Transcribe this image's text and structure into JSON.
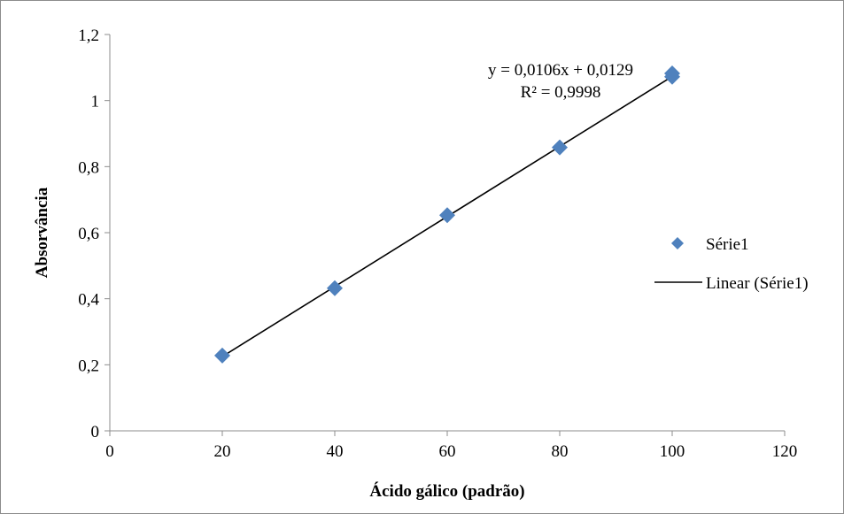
{
  "chart_data": {
    "type": "scatter",
    "xlabel": "Ácido gálico (padrão)",
    "ylabel": "Absorvância",
    "xlim": [
      0,
      120
    ],
    "ylim": [
      0,
      1.2
    ],
    "x_ticks": [
      0,
      20,
      40,
      60,
      80,
      100,
      120
    ],
    "y_ticks": [
      0,
      0.2,
      0.4,
      0.6,
      0.8,
      1,
      1.2
    ],
    "x_tick_labels": [
      "0",
      "20",
      "40",
      "60",
      "80",
      "100",
      "120"
    ],
    "y_tick_labels": [
      "0",
      "0,2",
      "0,4",
      "0,6",
      "0,8",
      "1",
      "1,2"
    ],
    "grid": false,
    "legend_position": "right",
    "series": [
      {
        "name": "Série1",
        "color": "#4f81bd",
        "marker": "diamond",
        "points": [
          {
            "x": 20,
            "y": 0.228
          },
          {
            "x": 40,
            "y": 0.432
          },
          {
            "x": 60,
            "y": 0.653
          },
          {
            "x": 80,
            "y": 0.858
          },
          {
            "x": 100,
            "y": 1.072
          },
          {
            "x": 100,
            "y": 1.082
          }
        ]
      }
    ],
    "trendline": {
      "name": "Linear (Série1)",
      "color": "#000000",
      "slope": 0.0106,
      "intercept": 0.0129,
      "x_range": [
        20,
        100
      ],
      "equation_label": "y = 0,0106x + 0,0129",
      "r2_label": "R² = 0,9998"
    }
  }
}
